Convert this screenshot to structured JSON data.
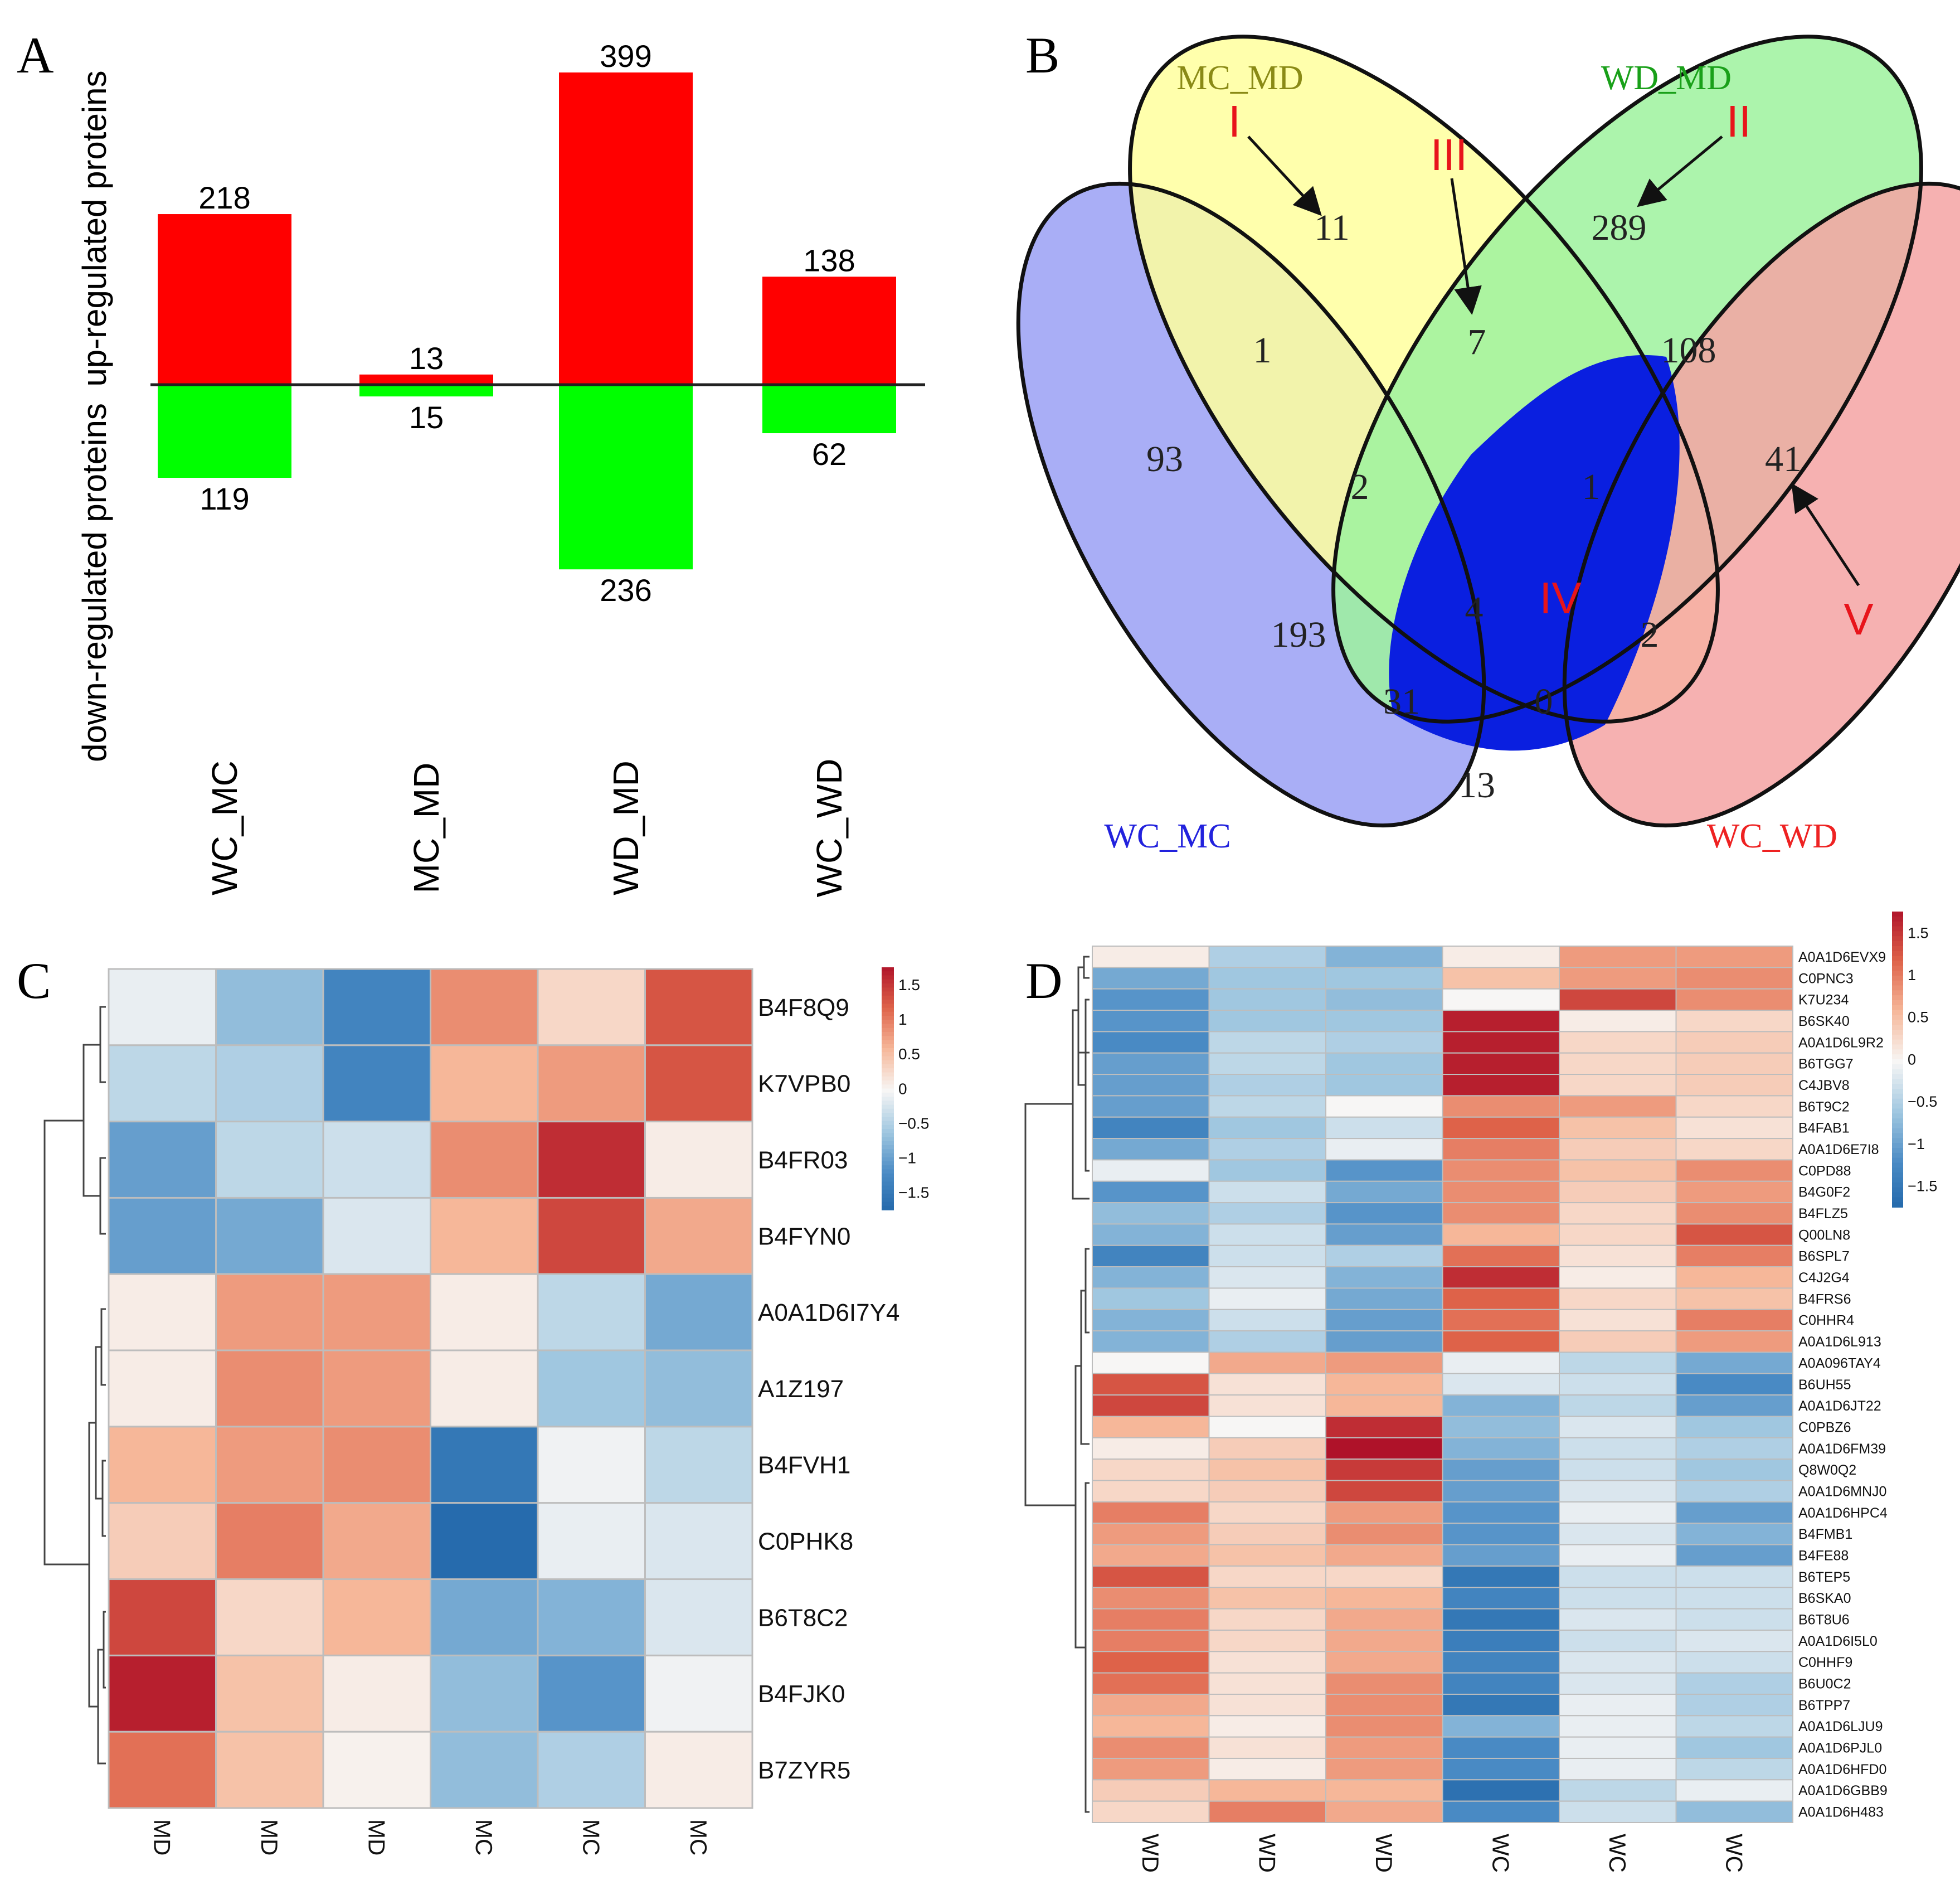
{
  "panels": {
    "a": "A",
    "b": "B",
    "c": "C",
    "d": "D"
  },
  "colors": {
    "up": "#ff0000",
    "down": "#00ff00",
    "axis": "#222222",
    "roman": "#e8141b"
  },
  "chart_data": [
    {
      "type": "bar",
      "panel": "A",
      "categories": [
        "WC_MC",
        "MC_MD",
        "WD_MD",
        "WC_WD"
      ],
      "series": [
        {
          "name": "up-regulated proteins",
          "values": [
            218,
            13,
            399,
            138
          ]
        },
        {
          "name": "down-regulated proteins",
          "values": [
            119,
            15,
            236,
            62
          ]
        }
      ],
      "ylabel_up": "up-regulated proteins",
      "ylabel_down": "down-regulated proteins",
      "ylim": [
        -236,
        399
      ]
    },
    {
      "type": "venn",
      "panel": "B",
      "sets": [
        {
          "name": "WC_MC",
          "color": "#2222dd",
          "fill": "#9aa0f5"
        },
        {
          "name": "MC_MD",
          "color": "#8a8a16",
          "fill": "#ffff9e"
        },
        {
          "name": "WD_MD",
          "color": "#19a019",
          "fill": "#9ef29e"
        },
        {
          "name": "WC_WD",
          "color": "#ee2222",
          "fill": "#f5a3a3"
        }
      ],
      "regions": [
        {
          "sets": "MC_MD only",
          "value": "11"
        },
        {
          "sets": "WD_MD only",
          "value": "289"
        },
        {
          "sets": "WC_MC, MC_MD",
          "value": "1"
        },
        {
          "sets": "MC_MD, WD_MD",
          "value": "7"
        },
        {
          "sets": "WD_MD, WC_WD",
          "value": "108"
        },
        {
          "sets": "WC_MC only",
          "value": "93"
        },
        {
          "sets": "WC_MC, MC_MD, WD_MD",
          "value": "2"
        },
        {
          "sets": "MC_MD, WD_MD, WC_WD",
          "value": "1"
        },
        {
          "sets": "WC_WD only",
          "value": "41"
        },
        {
          "sets": "WC_MC, WD_MD",
          "value": "193"
        },
        {
          "sets": "all four",
          "value": "4"
        },
        {
          "sets": "MC_MD, WC_WD",
          "value": "2"
        },
        {
          "sets": "WC_MC, WD_MD, WC_WD",
          "value": "31"
        },
        {
          "sets": "WC_MC, MC_MD, WC_WD",
          "value": "0"
        },
        {
          "sets": "WC_MC, WC_WD",
          "value": "13"
        }
      ],
      "annotations": [
        "I",
        "II",
        "III",
        "IV",
        "V"
      ]
    },
    {
      "type": "heatmap",
      "panel": "C",
      "columns": [
        "MD",
        "MD",
        "MD",
        "MC",
        "MC",
        "MC"
      ],
      "rows": [
        "B4F8Q9",
        "K7VPB0",
        "B4FR03",
        "B4FYN0",
        "A0A1D6I7Y4",
        "A1Z197",
        "B4FVH1",
        "C0PHK8",
        "B6T8C2",
        "B4FJK0",
        "B7ZYR5"
      ],
      "values": [
        [
          -0.1,
          -0.7,
          -1.3,
          0.9,
          0.3,
          1.3
        ],
        [
          -0.4,
          -0.5,
          -1.3,
          0.6,
          0.8,
          1.3
        ],
        [
          -1.0,
          -0.4,
          -0.3,
          0.9,
          1.6,
          0.1
        ],
        [
          -1.0,
          -0.9,
          -0.2,
          0.6,
          1.4,
          0.7
        ],
        [
          0.1,
          0.8,
          0.8,
          0.1,
          -0.4,
          -0.9
        ],
        [
          0.1,
          0.9,
          0.8,
          0.1,
          -0.6,
          -0.7
        ],
        [
          0.6,
          0.8,
          0.9,
          -1.5,
          -0.05,
          -0.4
        ],
        [
          0.4,
          1.0,
          0.7,
          -1.7,
          -0.1,
          -0.2
        ],
        [
          1.4,
          0.3,
          0.6,
          -0.9,
          -0.8,
          -0.2
        ],
        [
          1.7,
          0.5,
          0.1,
          -0.7,
          -1.1,
          -0.05
        ],
        [
          1.1,
          0.5,
          0.05,
          -0.7,
          -0.5,
          0.1
        ]
      ],
      "legend_ticks": [
        "1.5",
        "1",
        "0.5",
        "0",
        "−0.5",
        "−1",
        "−1.5"
      ],
      "legend_values": [
        1.5,
        1,
        0.5,
        0,
        -0.5,
        -1,
        -1.5
      ]
    },
    {
      "type": "heatmap",
      "panel": "D",
      "columns": [
        "WD",
        "WD",
        "WD",
        "WC",
        "WC",
        "WC"
      ],
      "rows": [
        "A0A1D6EVX9",
        "C0PNC3",
        "K7U234",
        "B6SK40",
        "A0A1D6L9R2",
        "B6TGG7",
        "C4JBV8",
        "B6T9C2",
        "B4FAB1",
        "A0A1D6E7I8",
        "C0PD88",
        "B4G0F2",
        "B4FLZ5",
        "Q00LN8",
        "B6SPL7",
        "C4J2G4",
        "B4FRS6",
        "C0HHR4",
        "A0A1D6L913",
        "A0A096TAY4",
        "B6UH55",
        "A0A1D6JT22",
        "C0PBZ6",
        "A0A1D6FM39",
        "Q8W0Q2",
        "A0A1D6MNJ0",
        "A0A1D6HPC4",
        "B4FMB1",
        "B4FE88",
        "B6TEP5",
        "B6SKA0",
        "B6T8U6",
        "A0A1D6I5L0",
        "C0HHF9",
        "B6U0C2",
        "B6TPP7",
        "A0A1D6LJU9",
        "A0A1D6PJL0",
        "A0A1D6HFD0",
        "A0A1D6GBB9",
        "A0A1D6H483"
      ],
      "values": [
        [
          0.1,
          -0.5,
          -0.8,
          0.1,
          0.8,
          0.8
        ],
        [
          -0.9,
          -0.6,
          -0.6,
          0.5,
          0.8,
          0.9
        ],
        [
          -1.1,
          -0.6,
          -0.7,
          0.0,
          1.4,
          0.9
        ],
        [
          -1.1,
          -0.6,
          -0.6,
          1.7,
          0.1,
          0.3
        ],
        [
          -1.2,
          -0.4,
          -0.5,
          1.7,
          0.3,
          0.4
        ],
        [
          -1.0,
          -0.4,
          -0.6,
          1.7,
          0.3,
          0.4
        ],
        [
          -1.0,
          -0.5,
          -0.6,
          1.7,
          0.3,
          0.4
        ],
        [
          -1.0,
          -0.4,
          0.0,
          0.9,
          0.8,
          0.3
        ],
        [
          -1.3,
          -0.6,
          -0.3,
          1.2,
          0.5,
          0.2
        ],
        [
          -0.9,
          -0.5,
          -0.1,
          1.0,
          0.4,
          0.3
        ],
        [
          -0.1,
          -0.6,
          -1.1,
          0.9,
          0.5,
          0.9
        ],
        [
          -1.1,
          -0.3,
          -0.9,
          0.9,
          0.4,
          0.8
        ],
        [
          -0.7,
          -0.5,
          -1.1,
          0.9,
          0.3,
          0.9
        ],
        [
          -0.8,
          -0.3,
          -1.0,
          0.6,
          0.3,
          1.3
        ],
        [
          -1.3,
          -0.3,
          -0.5,
          1.1,
          0.2,
          1.0
        ],
        [
          -0.8,
          -0.2,
          -0.8,
          1.6,
          0.1,
          0.6
        ],
        [
          -0.6,
          -0.1,
          -0.9,
          1.2,
          0.3,
          0.5
        ],
        [
          -0.8,
          -0.3,
          -1.0,
          1.1,
          0.2,
          1.0
        ],
        [
          -0.8,
          -0.5,
          -1.0,
          1.2,
          0.4,
          0.8
        ],
        [
          0.0,
          0.7,
          0.8,
          -0.1,
          -0.4,
          -0.9
        ],
        [
          1.3,
          0.2,
          0.6,
          -0.2,
          -0.3,
          -1.2
        ],
        [
          1.4,
          0.2,
          0.6,
          -0.8,
          -0.4,
          -1.0
        ],
        [
          0.6,
          0.0,
          1.6,
          -0.7,
          -0.2,
          -0.6
        ],
        [
          0.1,
          0.4,
          1.8,
          -0.8,
          -0.3,
          -0.5
        ],
        [
          0.3,
          0.5,
          1.5,
          -1.0,
          -0.3,
          -0.6
        ],
        [
          0.3,
          0.4,
          1.4,
          -1.0,
          -0.2,
          -0.5
        ],
        [
          1.0,
          0.3,
          0.8,
          -1.1,
          -0.1,
          -1.0
        ],
        [
          0.8,
          0.4,
          0.9,
          -1.1,
          -0.2,
          -0.8
        ],
        [
          0.7,
          0.5,
          0.7,
          -1.0,
          -0.1,
          -1.0
        ],
        [
          1.3,
          0.3,
          0.3,
          -1.5,
          -0.3,
          -0.3
        ],
        [
          0.9,
          0.5,
          0.6,
          -1.3,
          -0.3,
          -0.3
        ],
        [
          1.0,
          0.3,
          0.7,
          -1.5,
          -0.2,
          -0.3
        ],
        [
          1.0,
          0.3,
          0.7,
          -1.4,
          -0.3,
          -0.2
        ],
        [
          1.2,
          0.2,
          0.7,
          -1.3,
          -0.2,
          -0.3
        ],
        [
          1.1,
          0.2,
          0.9,
          -1.3,
          -0.2,
          -0.5
        ],
        [
          0.7,
          0.2,
          0.9,
          -1.5,
          -0.1,
          -0.5
        ],
        [
          0.6,
          0.1,
          0.9,
          -0.8,
          -0.1,
          -0.4
        ],
        [
          0.9,
          0.2,
          0.8,
          -1.2,
          -0.1,
          -0.6
        ],
        [
          0.8,
          0.1,
          0.8,
          -1.2,
          -0.1,
          -0.4
        ],
        [
          0.4,
          0.6,
          0.6,
          -1.6,
          -0.4,
          -0.1
        ],
        [
          0.3,
          1.0,
          0.7,
          -1.2,
          -0.3,
          -0.7
        ]
      ],
      "legend_ticks": [
        "1.5",
        "1",
        "0.5",
        "0",
        "−0.5",
        "−1",
        "−1.5"
      ],
      "legend_values": [
        1.5,
        1,
        0.5,
        0,
        -0.5,
        -1,
        -1.5
      ]
    }
  ]
}
